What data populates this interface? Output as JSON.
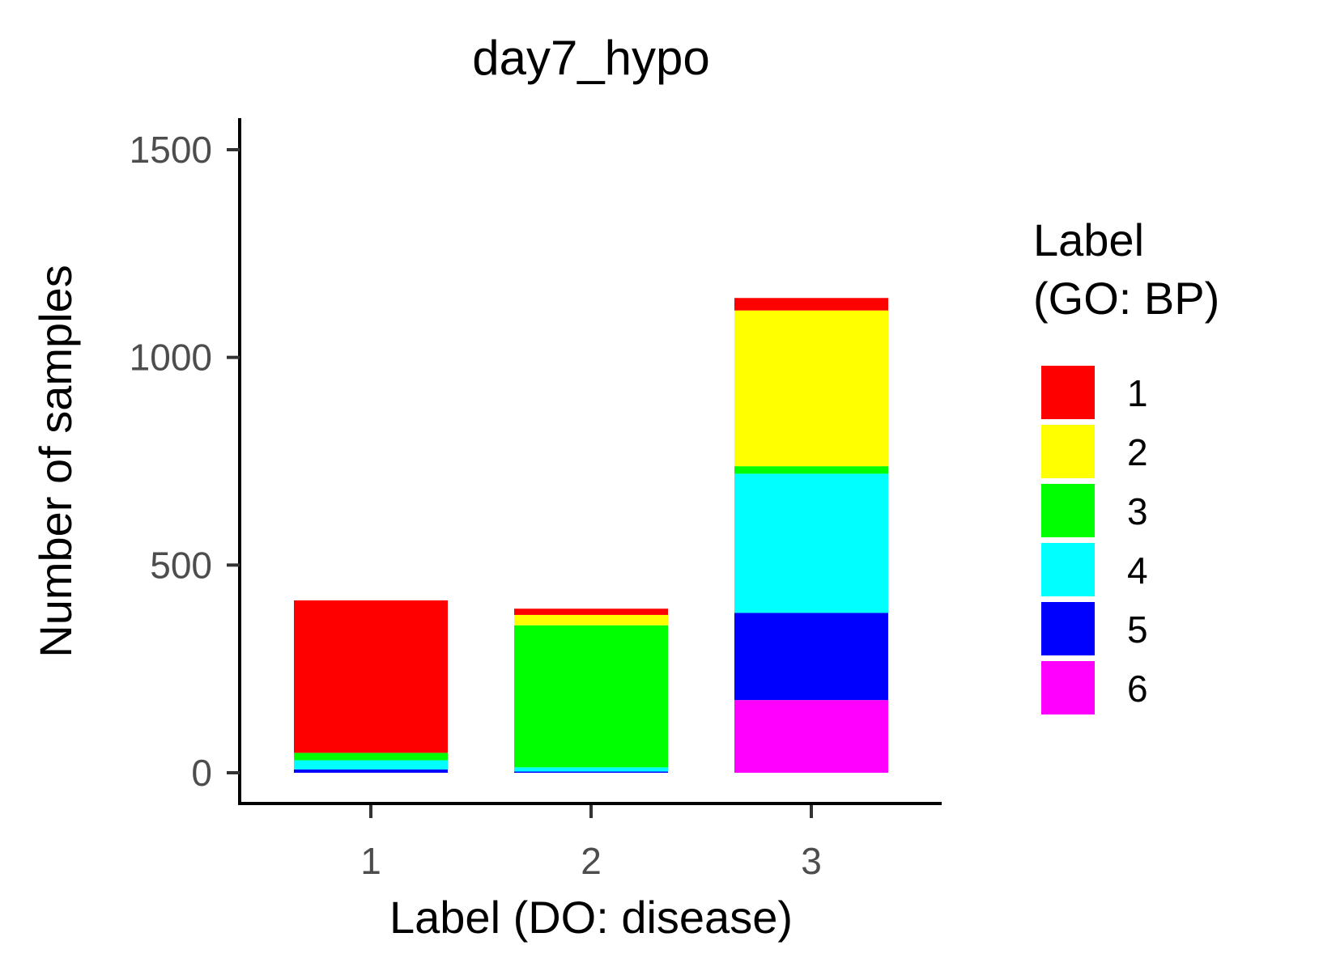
{
  "chart_data": {
    "type": "bar",
    "stacked": true,
    "title": "day7_hypo",
    "xlabel": "Label (DO: disease)",
    "ylabel": "Number of samples",
    "categories": [
      "1",
      "2",
      "3"
    ],
    "ylim": [
      0,
      1600
    ],
    "yticks": [
      0,
      500,
      1000,
      1500
    ],
    "grid": false,
    "legend": {
      "title_lines": [
        "Label",
        "(GO: BP)"
      ],
      "position": "right"
    },
    "series": [
      {
        "name": "6",
        "color": "#FF00FF",
        "values": [
          0,
          0,
          175
        ]
      },
      {
        "name": "5",
        "color": "#0000FF",
        "values": [
          8,
          3,
          210
        ]
      },
      {
        "name": "4",
        "color": "#00FFFF",
        "values": [
          22,
          10,
          335
        ]
      },
      {
        "name": "3",
        "color": "#00FF00",
        "values": [
          18,
          342,
          18
        ]
      },
      {
        "name": "2",
        "color": "#FFFF00",
        "values": [
          0,
          25,
          375
        ]
      },
      {
        "name": "1",
        "color": "#FF0000",
        "values": [
          367,
          15,
          30
        ]
      }
    ]
  }
}
